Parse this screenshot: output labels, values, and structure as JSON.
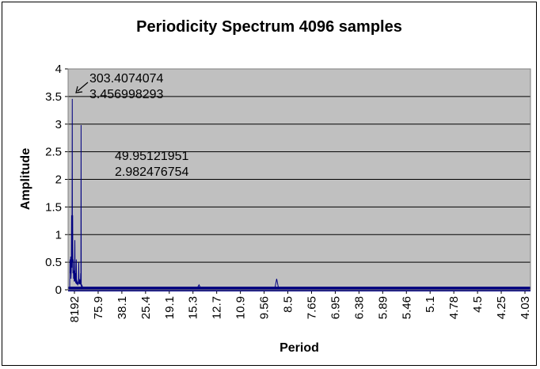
{
  "chart_data": {
    "type": "line",
    "title": "Periodicity Spectrum 4096 samples",
    "xlabel": "Period",
    "ylabel": "Amplitude",
    "ylim": [
      0,
      4
    ],
    "yticks": [
      "0",
      "0.5",
      "1",
      "1.5",
      "2",
      "2.5",
      "3",
      "3.5",
      "4"
    ],
    "xticks": [
      "8192",
      "75.9",
      "38.1",
      "25.4",
      "19.1",
      "15.3",
      "12.7",
      "10.9",
      "9.56",
      "8.5",
      "7.65",
      "6.95",
      "6.38",
      "5.89",
      "5.46",
      "5.1",
      "4.78",
      "4.5",
      "4.25",
      "4.03"
    ],
    "grid": "horizontal",
    "plot_background": "#c0c0c0",
    "line_color": "#000080",
    "series": [
      {
        "values_by_position": [
          [
            0.0,
            0.0
          ],
          [
            0.2,
            0.55
          ],
          [
            0.4,
            0.3
          ],
          [
            0.6,
            0.6
          ],
          [
            0.8,
            0.2
          ],
          [
            1.0,
            0.35
          ],
          [
            1.2,
            1.35
          ],
          [
            1.35,
            0.4
          ],
          [
            1.5,
            1.7
          ],
          [
            1.6,
            3.457
          ],
          [
            1.7,
            0.5
          ],
          [
            1.85,
            1.35
          ],
          [
            2.0,
            0.3
          ],
          [
            2.2,
            0.55
          ],
          [
            2.4,
            0.2
          ],
          [
            2.6,
            0.35
          ],
          [
            2.8,
            0.15
          ],
          [
            3.0,
            0.25
          ],
          [
            3.2,
            0.9
          ],
          [
            3.35,
            0.15
          ],
          [
            3.5,
            0.3
          ],
          [
            3.7,
            0.12
          ],
          [
            3.9,
            0.2
          ],
          [
            4.1,
            0.55
          ],
          [
            4.25,
            0.1
          ],
          [
            4.4,
            0.18
          ],
          [
            4.6,
            0.1
          ],
          [
            4.8,
            0.15
          ],
          [
            5.0,
            0.08
          ],
          [
            5.2,
            0.12
          ],
          [
            5.4,
            0.1
          ],
          [
            5.6,
            0.5
          ],
          [
            5.75,
            0.12
          ],
          [
            5.9,
            0.2
          ],
          [
            6.1,
            0.1
          ],
          [
            6.3,
            0.18
          ],
          [
            6.5,
            0.1
          ],
          [
            6.7,
            0.14
          ],
          [
            6.85,
            0.3
          ],
          [
            6.95,
            0.08
          ],
          [
            7.05,
            2.982
          ],
          [
            7.15,
            0.1
          ],
          [
            7.3,
            0.06
          ],
          [
            7.6,
            0.08
          ],
          [
            8.0,
            0.04
          ],
          [
            8.5,
            0.05
          ],
          [
            9.0,
            0.03
          ],
          [
            9.5,
            0.04
          ],
          [
            10.0,
            0.03
          ],
          [
            11.0,
            0.05
          ],
          [
            12.0,
            0.03
          ],
          [
            13.0,
            0.04
          ],
          [
            14.0,
            0.02
          ],
          [
            16.0,
            0.03
          ],
          [
            18.0,
            0.02
          ],
          [
            20.0,
            0.03
          ],
          [
            23.0,
            0.02
          ],
          [
            26.0,
            0.03
          ],
          [
            30.0,
            0.02
          ],
          [
            35.0,
            0.03
          ],
          [
            40.0,
            0.02
          ],
          [
            45.0,
            0.03
          ],
          [
            50.0,
            0.02
          ],
          [
            60.0,
            0.03
          ],
          [
            70.0,
            0.02
          ],
          [
            79.0,
            0.04
          ],
          [
            80.0,
            0.09
          ],
          [
            81.0,
            0.03
          ],
          [
            90.0,
            0.02
          ],
          [
            100.0,
            0.03
          ],
          [
            110.0,
            0.02
          ],
          [
            120.0,
            0.02
          ],
          [
            127.0,
            0.04
          ],
          [
            128.0,
            0.2
          ],
          [
            129.0,
            0.05
          ],
          [
            130.0,
            0.03
          ],
          [
            140.0,
            0.02
          ],
          [
            150.0,
            0.03
          ],
          [
            165.0,
            0.02
          ],
          [
            180.0,
            0.03
          ],
          [
            200.0,
            0.02
          ],
          [
            220.0,
            0.02
          ],
          [
            240.0,
            0.02
          ],
          [
            260.0,
            0.02
          ],
          [
            284.0,
            0.03
          ]
        ]
      }
    ],
    "annotations": [
      {
        "lines": [
          "303.4074074",
          "3.456998293"
        ],
        "target_y": 3.457,
        "arrow": true
      },
      {
        "lines": [
          "49.95121951",
          "2.982476754"
        ],
        "target_y": 2.982,
        "arrow": false
      }
    ]
  }
}
